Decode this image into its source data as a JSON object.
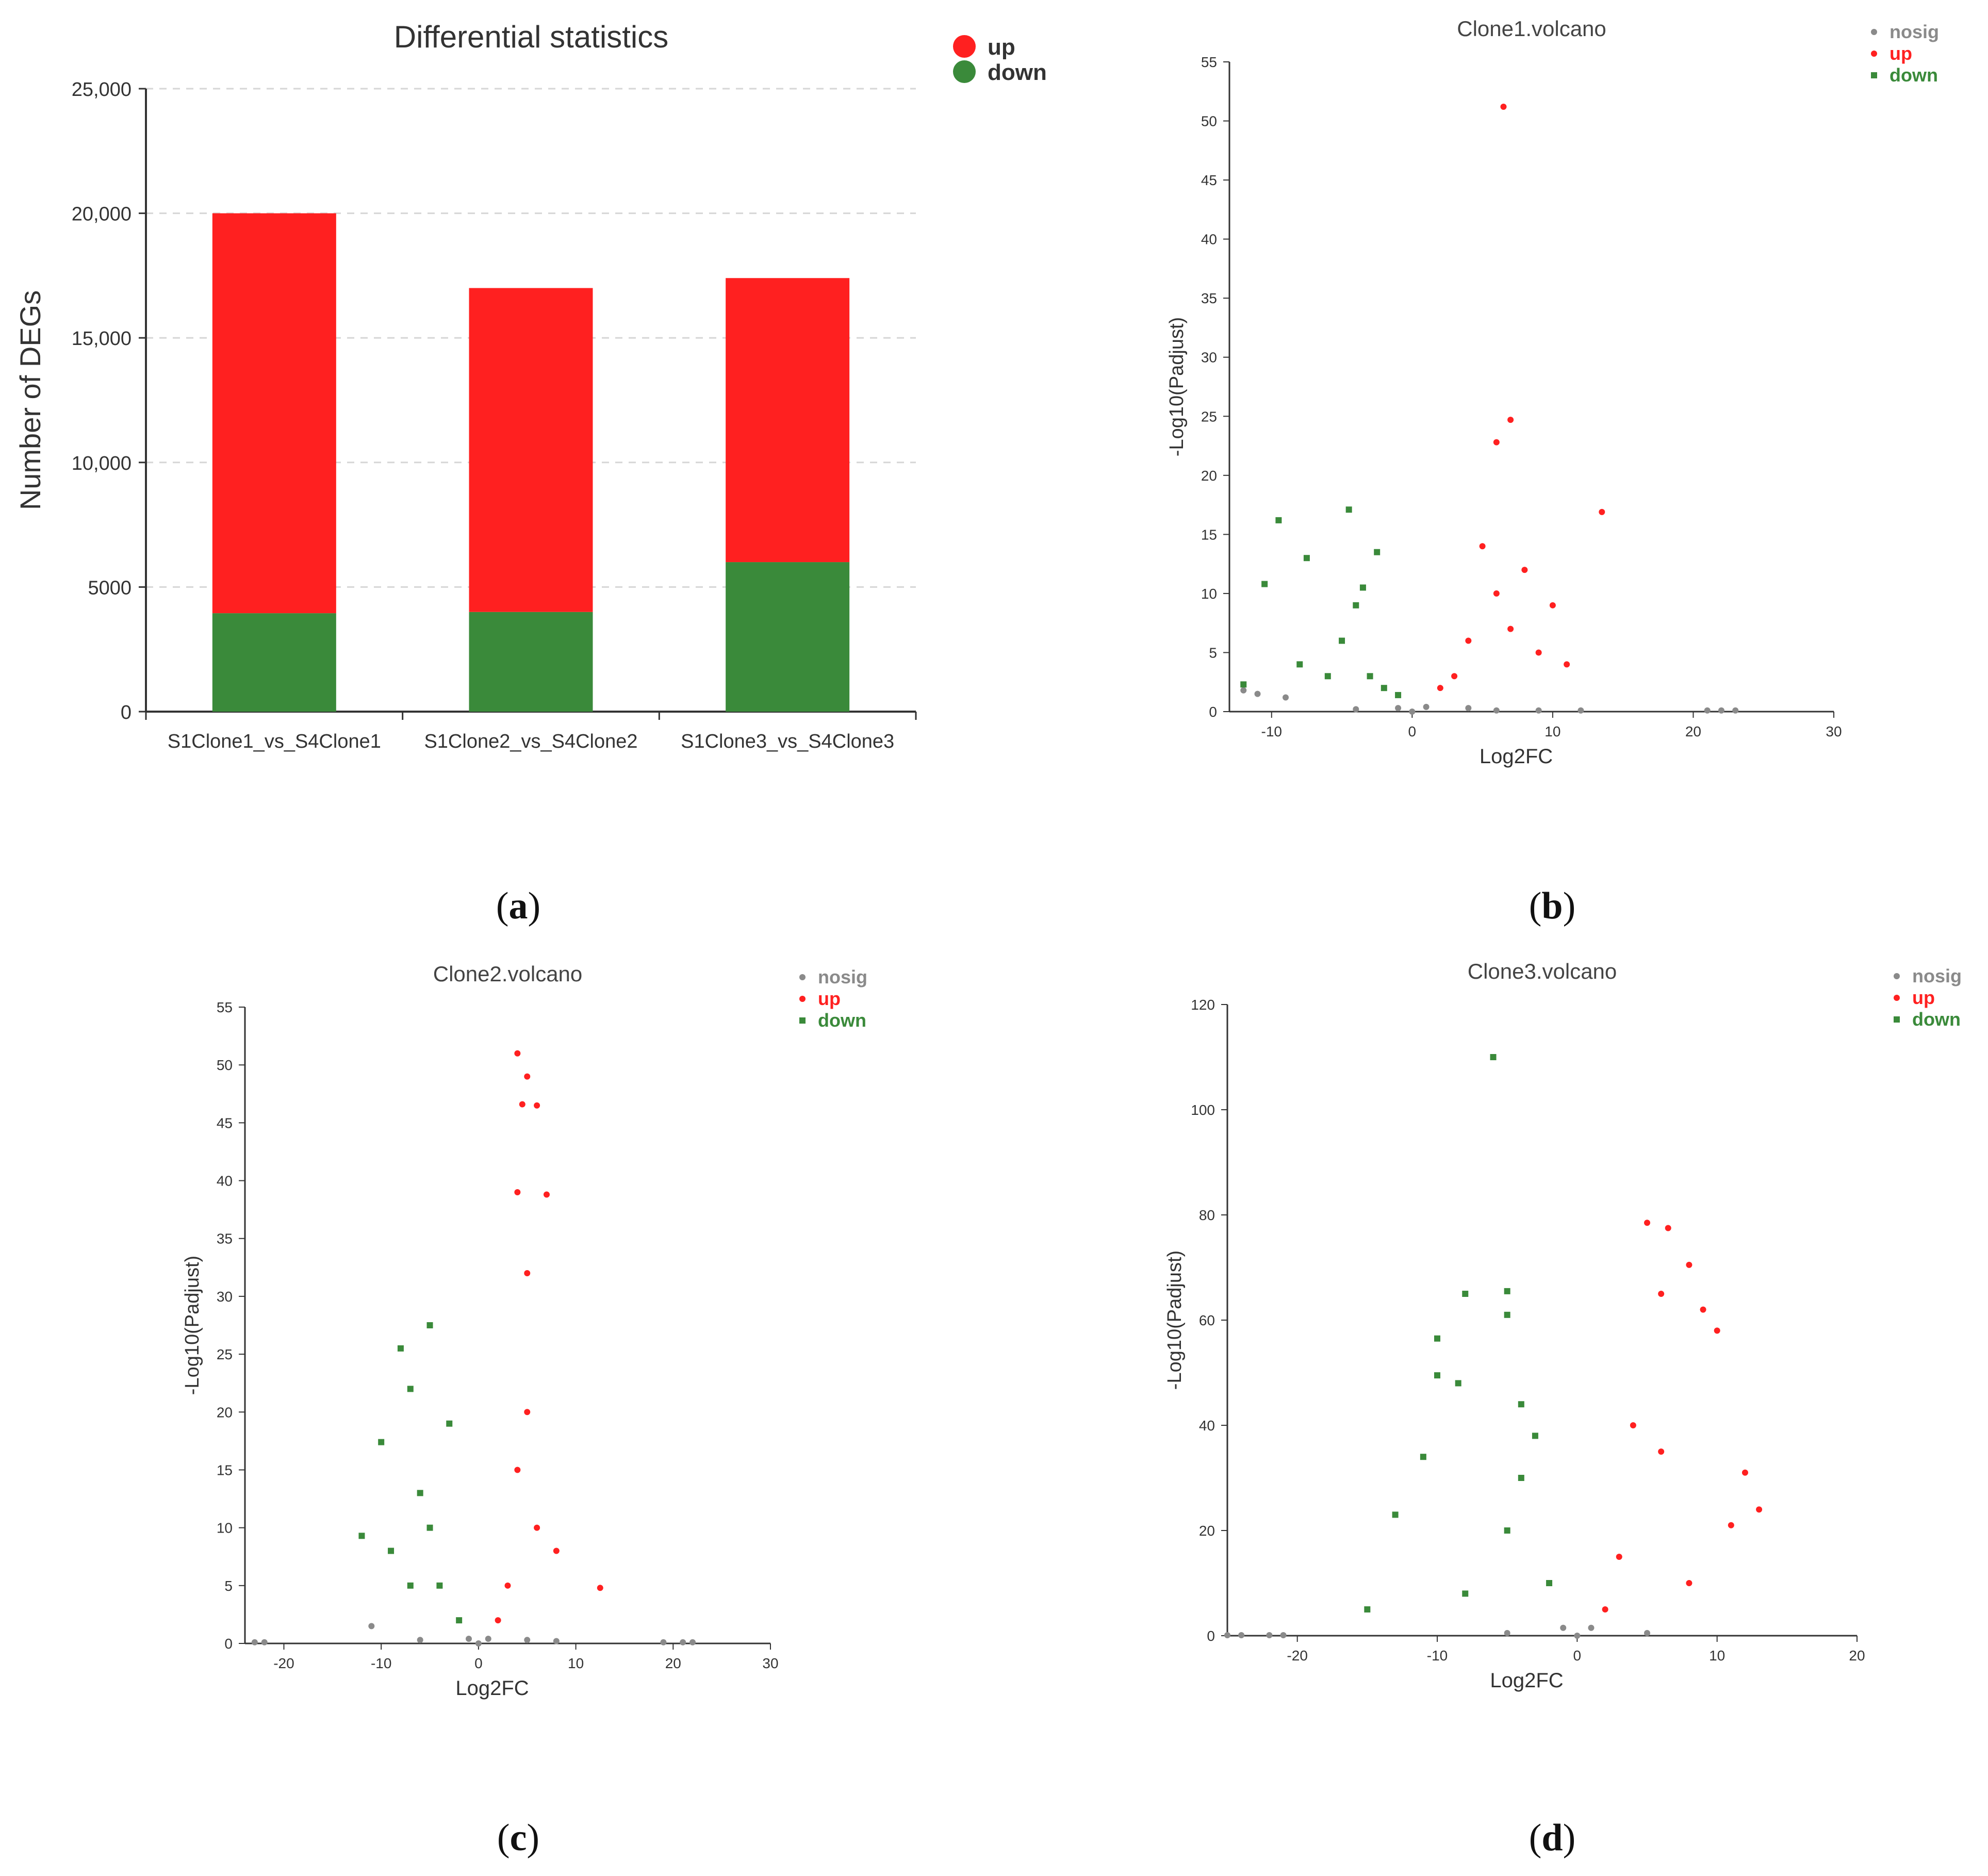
{
  "colors": {
    "up": "#ff2020",
    "down": "#3a8a3a",
    "nosig": "#8a8a8a",
    "axis": "#333333",
    "grid": "#d6d6d6"
  },
  "panel_labels": [
    "a",
    "b",
    "c",
    "d"
  ],
  "chart_data": [
    {
      "type": "bar",
      "stacked": true,
      "title": "Differential statistics",
      "xlabel": "",
      "ylabel": "Number of DEGs",
      "categories": [
        "S1Clone1_vs_S4Clone1",
        "S1Clone2_vs_S4Clone2",
        "S1Clone3_vs_S4Clone3"
      ],
      "series": [
        {
          "name": "down",
          "values": [
            3950,
            4000,
            6000
          ]
        },
        {
          "name": "up",
          "values": [
            16050,
            13000,
            11400
          ]
        }
      ],
      "ylim": [
        0,
        25000
      ],
      "yticks": [
        0,
        5000,
        10000,
        15000,
        20000,
        25000
      ],
      "yticklabels": [
        "0",
        "5000",
        "10,000",
        "15,000",
        "20,000",
        "25,000"
      ],
      "grid": true,
      "legend": "top-right"
    },
    {
      "type": "scatter",
      "title": "Clone1.volcano",
      "xlabel": "Log2FC",
      "ylabel": "-Log10(Padjust)",
      "xlim": [
        -13,
        30
      ],
      "ylim": [
        0,
        55
      ],
      "xticks": [
        -10,
        0,
        10,
        20,
        30
      ],
      "yticks": [
        0,
        5,
        10,
        15,
        20,
        25,
        30,
        35,
        40,
        45,
        50,
        55
      ],
      "legend": "top-right",
      "series": [
        {
          "name": "nosig",
          "shape": "dot",
          "points": [
            [
              -1,
              0.3
            ],
            [
              0,
              0
            ],
            [
              1,
              0.4
            ],
            [
              -11,
              1.5
            ],
            [
              -9,
              1.2
            ],
            [
              -12,
              1.8
            ],
            [
              12,
              0.1
            ],
            [
              21,
              0.1
            ],
            [
              22,
              0.1
            ],
            [
              23,
              0.1
            ],
            [
              6,
              0.1
            ],
            [
              9,
              0.1
            ],
            [
              -4,
              0.2
            ],
            [
              4,
              0.3
            ]
          ]
        },
        {
          "name": "up",
          "shape": "dot",
          "points": [
            [
              6.5,
              51.2
            ],
            [
              7,
              24.7
            ],
            [
              6,
              22.8
            ],
            [
              13.5,
              16.9
            ],
            [
              5,
              14
            ],
            [
              8,
              12
            ],
            [
              10,
              9
            ],
            [
              4,
              6
            ],
            [
              3,
              3
            ],
            [
              7,
              7
            ],
            [
              9,
              5
            ],
            [
              2,
              2
            ],
            [
              11,
              4
            ],
            [
              6,
              10
            ]
          ]
        },
        {
          "name": "down",
          "shape": "square",
          "points": [
            [
              -9.5,
              16.2
            ],
            [
              -4.5,
              17.1
            ],
            [
              -7.5,
              13
            ],
            [
              -10.5,
              10.8
            ],
            [
              -3.5,
              10.5
            ],
            [
              -2.5,
              13.5
            ],
            [
              -5,
              6
            ],
            [
              -8,
              4
            ],
            [
              -3,
              3
            ],
            [
              -2,
              2
            ],
            [
              -12,
              2.3
            ],
            [
              -6,
              3
            ],
            [
              -4,
              9
            ],
            [
              -1,
              1.4
            ]
          ]
        }
      ]
    },
    {
      "type": "scatter",
      "title": "Clone2.volcano",
      "xlabel": "Log2FC",
      "ylabel": "-Log10(Padjust)",
      "xlim": [
        -24,
        30
      ],
      "ylim": [
        0,
        55
      ],
      "xticks": [
        -20,
        -10,
        0,
        10,
        20,
        30
      ],
      "yticks": [
        0,
        5,
        10,
        15,
        20,
        25,
        30,
        35,
        40,
        45,
        50,
        55
      ],
      "legend": "top-right",
      "series": [
        {
          "name": "nosig",
          "shape": "dot",
          "points": [
            [
              0,
              0
            ],
            [
              -1,
              0.4
            ],
            [
              1,
              0.4
            ],
            [
              -23,
              0.1
            ],
            [
              -22,
              0.1
            ],
            [
              19,
              0.1
            ],
            [
              21,
              0.1
            ],
            [
              22,
              0.1
            ],
            [
              -11,
              1.5
            ],
            [
              8,
              0.2
            ],
            [
              -6,
              0.3
            ],
            [
              5,
              0.3
            ]
          ]
        },
        {
          "name": "up",
          "shape": "dot",
          "points": [
            [
              4,
              51
            ],
            [
              5,
              49
            ],
            [
              4.5,
              46.6
            ],
            [
              6,
              46.5
            ],
            [
              4,
              39
            ],
            [
              7,
              38.8
            ],
            [
              5,
              32
            ],
            [
              12.5,
              4.8
            ],
            [
              3,
              5
            ],
            [
              4,
              15
            ],
            [
              6,
              10
            ],
            [
              8,
              8
            ],
            [
              2,
              2
            ],
            [
              5,
              20
            ]
          ]
        },
        {
          "name": "down",
          "shape": "square",
          "points": [
            [
              -5,
              27.5
            ],
            [
              -8,
              25.5
            ],
            [
              -7,
              22
            ],
            [
              -10,
              17.4
            ],
            [
              -3,
              19
            ],
            [
              -6,
              13
            ],
            [
              -9,
              8
            ],
            [
              -4,
              5
            ],
            [
              -2,
              2
            ],
            [
              -12,
              9.3
            ],
            [
              -7,
              5
            ],
            [
              -5,
              10
            ]
          ]
        }
      ]
    },
    {
      "type": "scatter",
      "title": "Clone3.volcano",
      "xlabel": "Log2FC",
      "ylabel": "-Log10(Padjust)",
      "xlim": [
        -25,
        20
      ],
      "ylim": [
        0,
        120
      ],
      "xticks": [
        -20,
        -10,
        0,
        10,
        20
      ],
      "yticks": [
        0,
        20,
        40,
        60,
        80,
        100,
        120
      ],
      "legend": "top-right",
      "series": [
        {
          "name": "nosig",
          "shape": "dot",
          "points": [
            [
              0,
              0
            ],
            [
              -1,
              1.5
            ],
            [
              1,
              1.5
            ],
            [
              -25,
              0.1
            ],
            [
              -24,
              0.1
            ],
            [
              -22,
              0.1
            ],
            [
              -21,
              0.1
            ],
            [
              -5,
              0.5
            ],
            [
              5,
              0.5
            ]
          ]
        },
        {
          "name": "up",
          "shape": "dot",
          "points": [
            [
              5,
              78.5
            ],
            [
              6.5,
              77.5
            ],
            [
              8,
              70.5
            ],
            [
              9,
              62
            ],
            [
              10,
              58
            ],
            [
              6,
              65
            ],
            [
              12,
              31
            ],
            [
              11,
              21
            ],
            [
              4,
              40
            ],
            [
              3,
              15
            ],
            [
              8,
              10
            ],
            [
              13,
              24
            ],
            [
              2,
              5
            ],
            [
              6,
              35
            ]
          ]
        },
        {
          "name": "down",
          "shape": "square",
          "points": [
            [
              -6,
              110
            ],
            [
              -5,
              65.5
            ],
            [
              -8,
              65
            ],
            [
              -10,
              56.5
            ],
            [
              -5,
              61
            ],
            [
              -10,
              49.5
            ],
            [
              -8.5,
              48
            ],
            [
              -4,
              44
            ],
            [
              -3,
              38
            ],
            [
              -11,
              34
            ],
            [
              -13,
              23
            ],
            [
              -15,
              5
            ],
            [
              -5,
              20
            ],
            [
              -2,
              10
            ],
            [
              -8,
              8
            ],
            [
              -4,
              30
            ]
          ]
        }
      ]
    }
  ]
}
